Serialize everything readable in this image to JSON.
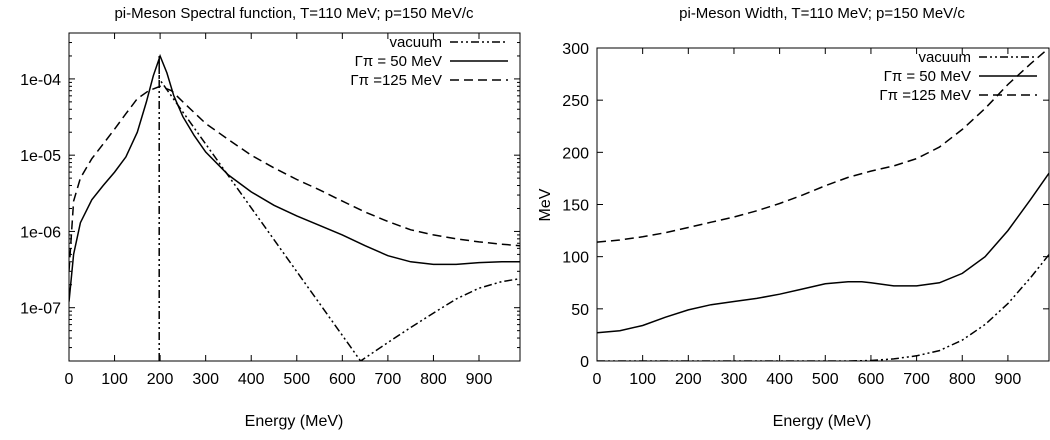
{
  "chart_data": [
    {
      "type": "line",
      "title": "pi-Meson Spectral function, T=110 MeV; p=150 MeV/c",
      "xlabel": "Energy (MeV)",
      "ylabel": "",
      "xlim": [
        0,
        990
      ],
      "ylim": [
        2e-08,
        0.0004
      ],
      "yscale": "log",
      "grid": false,
      "legend_position": "top-right",
      "xticks": [
        0,
        100,
        200,
        300,
        400,
        500,
        600,
        700,
        800,
        900
      ],
      "xtick_labels": [
        "0",
        "100",
        "200",
        "300",
        "400",
        "500",
        "600",
        "700",
        "800",
        "900"
      ],
      "yticks": [
        1e-07,
        1e-06,
        1e-05,
        0.0001
      ],
      "ytick_labels": [
        "1e-07",
        "1e-06",
        "1e-05",
        "1e-04"
      ],
      "series": [
        {
          "name": "vacuum",
          "style": "dash-dot-dot",
          "color": "#000000",
          "x": [
            198,
            198,
            198,
            198,
            640,
            700,
            750,
            800,
            850,
            900,
            950,
            990
          ],
          "y": [
            2e-08,
            0.0001,
            0.0002,
            0.0001,
            2e-08,
            3.5e-08,
            5.5e-08,
            8.5e-08,
            1.3e-07,
            1.8e-07,
            2.2e-07,
            2.4e-07
          ]
        },
        {
          "name": "Γπ = 50 MeV",
          "style": "solid",
          "color": "#000000",
          "x": [
            0,
            10,
            25,
            50,
            75,
            100,
            125,
            150,
            170,
            185,
            200,
            215,
            230,
            250,
            275,
            300,
            350,
            400,
            450,
            500,
            550,
            600,
            650,
            700,
            750,
            800,
            850,
            900,
            950,
            990
          ],
          "y": [
            1.2e-07,
            5e-07,
            1.3e-06,
            2.6e-06,
            4e-06,
            6e-06,
            9.5e-06,
            2e-05,
            5e-05,
            0.00011,
            0.0002,
            0.00012,
            6e-05,
            3.2e-05,
            1.8e-05,
            1.1e-05,
            5.5e-06,
            3.3e-06,
            2.2e-06,
            1.6e-06,
            1.2e-06,
            9e-07,
            6.5e-07,
            4.8e-07,
            4e-07,
            3.7e-07,
            3.7e-07,
            3.9e-07,
            4e-07,
            4e-07
          ]
        },
        {
          "name": "Γπ =125 MeV",
          "style": "dashed",
          "color": "#000000",
          "x": [
            0,
            10,
            25,
            50,
            75,
            100,
            125,
            150,
            175,
            200,
            225,
            250,
            300,
            350,
            400,
            450,
            500,
            550,
            600,
            650,
            700,
            750,
            800,
            850,
            900,
            950,
            990
          ],
          "y": [
            3e-07,
            2.5e-06,
            5e-06,
            9e-06,
            1.4e-05,
            2.2e-05,
            3.5e-05,
            5.5e-05,
            7e-05,
            8e-05,
            7e-05,
            5e-05,
            2.6e-05,
            1.6e-05,
            1e-05,
            6.8e-06,
            4.8e-06,
            3.5e-06,
            2.5e-06,
            1.8e-06,
            1.35e-06,
            1.05e-06,
            9e-07,
            8e-07,
            7.3e-07,
            6.8e-07,
            6.5e-07
          ]
        }
      ]
    },
    {
      "type": "line",
      "title": "pi-Meson Width, T=110 MeV; p=150 MeV/c",
      "xlabel": "Energy (MeV)",
      "ylabel": "MeV",
      "xlim": [
        0,
        990
      ],
      "ylim": [
        0,
        300
      ],
      "yscale": "linear",
      "grid": false,
      "legend_position": "top-right",
      "xticks": [
        0,
        100,
        200,
        300,
        400,
        500,
        600,
        700,
        800,
        900
      ],
      "xtick_labels": [
        "0",
        "100",
        "200",
        "300",
        "400",
        "500",
        "600",
        "700",
        "800",
        "900"
      ],
      "yticks": [
        0,
        50,
        100,
        150,
        200,
        250,
        300
      ],
      "ytick_labels": [
        "0",
        "50",
        "100",
        "150",
        "200",
        "250",
        "300"
      ],
      "series": [
        {
          "name": "vacuum",
          "style": "dash-dot-dot",
          "color": "#000000",
          "x": [
            0,
            100,
            200,
            300,
            400,
            500,
            550,
            600,
            650,
            700,
            750,
            800,
            850,
            900,
            950,
            990
          ],
          "y": [
            0,
            0,
            0,
            0,
            0,
            0,
            0,
            0.5,
            2,
            5,
            10,
            20,
            35,
            55,
            80,
            102
          ]
        },
        {
          "name": "Γπ = 50 MeV",
          "style": "solid",
          "color": "#000000",
          "x": [
            0,
            50,
            100,
            150,
            200,
            250,
            300,
            350,
            400,
            450,
            500,
            550,
            580,
            600,
            650,
            700,
            750,
            800,
            850,
            900,
            950,
            990
          ],
          "y": [
            27,
            29,
            34,
            42,
            49,
            54,
            57,
            60,
            64,
            69,
            74,
            76,
            76,
            75,
            72,
            72,
            75,
            84,
            100,
            125,
            155,
            180
          ]
        },
        {
          "name": "Γπ =125 MeV",
          "style": "dashed",
          "color": "#000000",
          "x": [
            0,
            50,
            100,
            150,
            200,
            250,
            300,
            350,
            400,
            450,
            500,
            550,
            600,
            650,
            700,
            750,
            800,
            850,
            900,
            950,
            990
          ],
          "y": [
            114,
            116,
            119,
            123,
            128,
            133,
            138,
            144,
            151,
            159,
            168,
            176,
            182,
            187,
            194,
            205,
            222,
            242,
            265,
            285,
            300
          ]
        }
      ]
    }
  ]
}
